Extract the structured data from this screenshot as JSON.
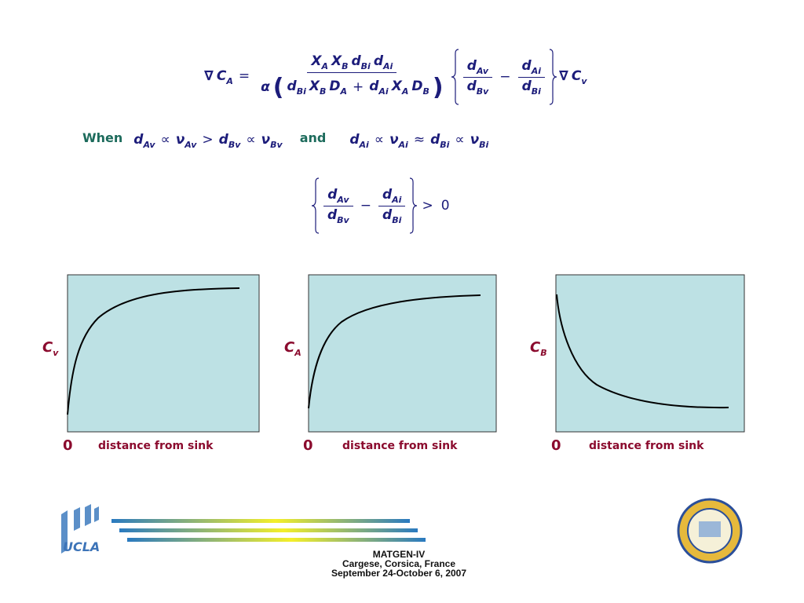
{
  "equation1": {
    "lhs": [
      {
        "b": "∇"
      },
      {
        "b": "C",
        "s": "A"
      },
      {
        "b": "="
      }
    ],
    "num": [
      {
        "b": "X",
        "s": "A"
      },
      {
        "b": "X",
        "s": "B"
      },
      {
        "b": "d",
        "s": "Bi"
      },
      {
        "b": "d",
        "s": "Ai"
      }
    ],
    "den": [
      {
        "b": "α"
      },
      {
        "b": "("
      },
      {
        "b": "d",
        "s": "Bi"
      },
      {
        "b": "X",
        "s": "B"
      },
      {
        "b": "D",
        "s": "A"
      },
      {
        "b": "+"
      },
      {
        "b": "d",
        "s": "Ai"
      },
      {
        "b": "X",
        "s": "A"
      },
      {
        "b": "D",
        "s": "B"
      },
      {
        "b": ")"
      }
    ],
    "frac1": {
      "num": [
        {
          "b": "d",
          "s": "Av"
        }
      ],
      "den": [
        {
          "b": "d",
          "s": "Bv"
        }
      ]
    },
    "minus": "−",
    "frac2": {
      "num": [
        {
          "b": "d",
          "s": "Ai"
        }
      ],
      "den": [
        {
          "b": "d",
          "s": "Bi"
        }
      ]
    },
    "rhs": [
      {
        "b": "∇"
      },
      {
        "b": "C",
        "s": "v"
      }
    ]
  },
  "condition": {
    "when": "When",
    "left": [
      {
        "b": "d",
        "s": "Av"
      },
      {
        "b": "∝"
      },
      {
        "b": "ν",
        "s": "Av"
      },
      {
        "b": ">"
      },
      {
        "b": "d",
        "s": "Bv"
      },
      {
        "b": "∝"
      },
      {
        "b": "ν",
        "s": "Bv"
      }
    ],
    "and": "and",
    "right": [
      {
        "b": "d",
        "s": "Ai"
      },
      {
        "b": "∝"
      },
      {
        "b": "ν",
        "s": "Ai"
      },
      {
        "b": "≈"
      },
      {
        "b": "d",
        "s": "Bi"
      },
      {
        "b": "∝"
      },
      {
        "b": "ν",
        "s": "Bi"
      }
    ]
  },
  "equation2": {
    "frac1": {
      "num": [
        {
          "b": "d",
          "s": "Av"
        }
      ],
      "den": [
        {
          "b": "d",
          "s": "Bv"
        }
      ]
    },
    "minus": "−",
    "frac2": {
      "num": [
        {
          "b": "d",
          "s": "Ai"
        }
      ],
      "den": [
        {
          "b": "d",
          "s": "Bi"
        }
      ]
    },
    "rhs": [
      {
        "b": ">"
      },
      {
        "b": "0"
      }
    ]
  },
  "plots": [
    {
      "y_label": [
        {
          "b": "C",
          "s": "v"
        }
      ],
      "origin": "0",
      "x_label": "distance from sink"
    },
    {
      "y_label": [
        {
          "b": "C",
          "s": "A"
        }
      ],
      "origin": "0",
      "x_label": "distance from sink"
    },
    {
      "y_label": [
        {
          "b": "C",
          "s": "B"
        }
      ],
      "origin": "0",
      "x_label": "distance from sink"
    }
  ],
  "logo": "UCLA",
  "footer": [
    "MATGEN-IV",
    "Cargese, Corsica, France",
    "September 24-October 6, 2007"
  ]
}
